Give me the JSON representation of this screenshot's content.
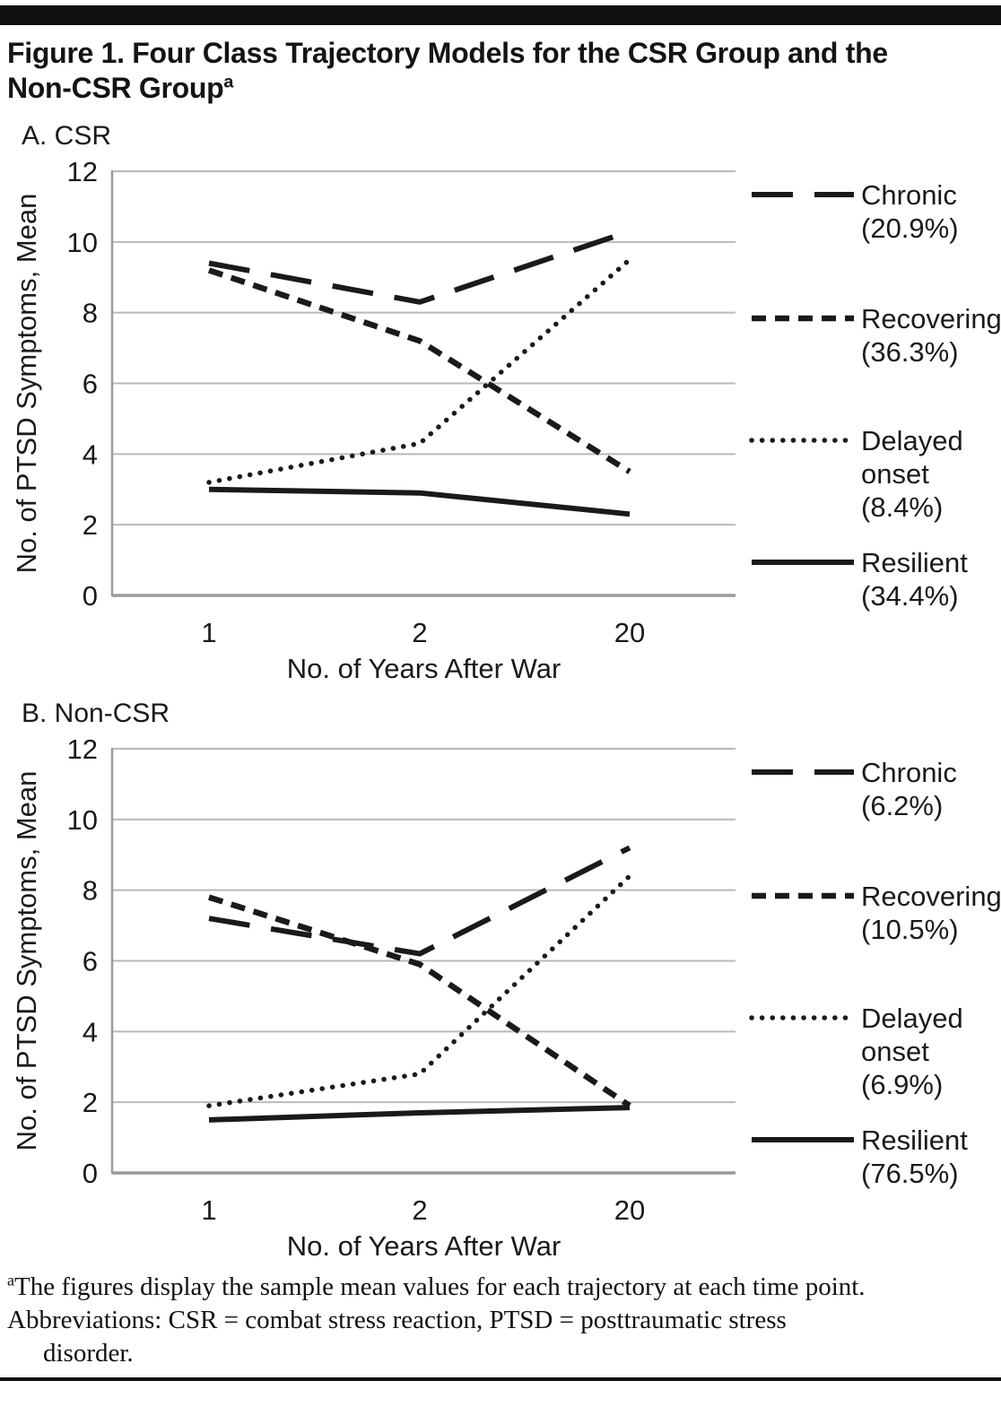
{
  "page": {
    "title_line1": "Figure 1. Four Class Trajectory Models for the CSR Group and the",
    "title_line2": "Non-CSR Group",
    "title_superscript": "a",
    "footnote": {
      "superscript": "a",
      "line1": "The figures display the sample mean values for each trajectory at each time point.",
      "line2": "Abbreviations: CSR = combat stress reaction, PTSD = posttraumatic stress",
      "line3": "disorder."
    }
  },
  "colors": {
    "line": "#1a1a1a",
    "text": "#1a1a1a",
    "grid": "#b9b9b9",
    "axis": "#9a9a9a",
    "rule": "#101010"
  },
  "chart_data": [
    {
      "type": "line",
      "panel_label": "A. CSR",
      "x": [
        1,
        2,
        20
      ],
      "x_tick_labels": [
        "1",
        "2",
        "20"
      ],
      "xlabel": "No. of Years After War",
      "ylabel": "No. of PTSD Symptoms, Mean",
      "ylim": [
        0,
        12
      ],
      "ytick_step": 2,
      "y_tick_labels": [
        "0",
        "2",
        "4",
        "6",
        "8",
        "10",
        "12"
      ],
      "grid": true,
      "x_scale": "categorical-equal-spacing",
      "legend_position": "right",
      "series": [
        {
          "name": "Chronic",
          "pct": "(20.9%)",
          "style": "long-dash",
          "values": [
            9.4,
            8.3,
            10.3
          ]
        },
        {
          "name": "Recovering",
          "pct": "(36.3%)",
          "style": "short-dash",
          "values": [
            9.2,
            7.2,
            3.5
          ]
        },
        {
          "name": "Delayed onset",
          "pct": "(8.4%)",
          "style": "dotted",
          "values": [
            3.2,
            4.3,
            9.5
          ]
        },
        {
          "name": "Resilient",
          "pct": "(34.4%)",
          "style": "solid",
          "values": [
            3.0,
            2.9,
            2.3
          ]
        }
      ]
    },
    {
      "type": "line",
      "panel_label": "B. Non-CSR",
      "x": [
        1,
        2,
        20
      ],
      "x_tick_labels": [
        "1",
        "2",
        "20"
      ],
      "xlabel": "No. of Years After War",
      "ylabel": "No. of PTSD Symptoms, Mean",
      "ylim": [
        0,
        12
      ],
      "ytick_step": 2,
      "y_tick_labels": [
        "0",
        "2",
        "4",
        "6",
        "8",
        "10",
        "12"
      ],
      "grid": true,
      "x_scale": "categorical-equal-spacing",
      "legend_position": "right",
      "series": [
        {
          "name": "Chronic",
          "pct": "(6.2%)",
          "style": "long-dash",
          "values": [
            7.2,
            6.2,
            9.2
          ]
        },
        {
          "name": "Recovering",
          "pct": "(10.5%)",
          "style": "short-dash",
          "values": [
            7.8,
            5.9,
            1.9
          ]
        },
        {
          "name": "Delayed onset",
          "pct": "(6.9%)",
          "style": "dotted",
          "values": [
            1.9,
            2.8,
            8.4
          ]
        },
        {
          "name": "Resilient",
          "pct": "(76.5%)",
          "style": "solid",
          "values": [
            1.5,
            1.7,
            1.85
          ]
        }
      ]
    }
  ]
}
